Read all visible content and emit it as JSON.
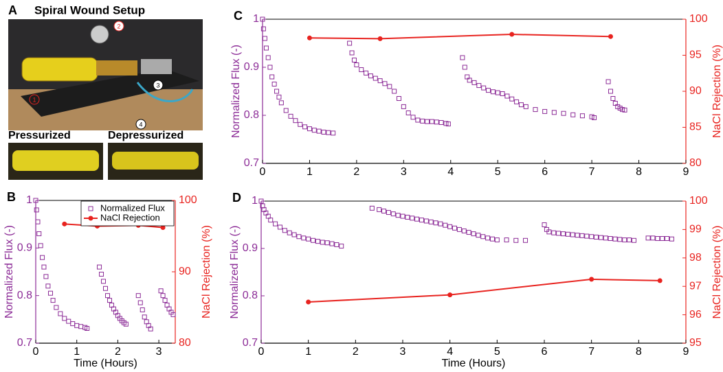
{
  "panel_a": {
    "label": "A",
    "title": "Spiral Wound Setup",
    "callouts": [
      "1",
      "2",
      "3",
      "4"
    ],
    "left_caption": "Pressurized",
    "right_caption": "Depressurized"
  },
  "chart_data": [
    {
      "type": "scatter",
      "label": "B",
      "xlabel": "Time (Hours)",
      "ylabel": "Normalized Flux (-)",
      "y2label": "NaCl Rejection (%)",
      "xlim": [
        0,
        3.4
      ],
      "xticks": [
        0,
        1,
        2,
        3
      ],
      "ylim": [
        0.7,
        1.0
      ],
      "yticks": [
        0.7,
        0.8,
        0.9,
        1
      ],
      "y2lim": [
        80,
        100
      ],
      "y2ticks": [
        80,
        90,
        100
      ],
      "legend": "upper right",
      "series": [
        {
          "name": "Normalized Flux",
          "color": "#8b2a96",
          "marker": "square-open",
          "line": false,
          "x": [
            0,
            0.02,
            0.05,
            0.08,
            0.12,
            0.16,
            0.2,
            0.25,
            0.3,
            0.36,
            0.42,
            0.5,
            0.6,
            0.7,
            0.8,
            0.9,
            1.0,
            1.1,
            1.2,
            1.25,
            1.55,
            1.6,
            1.65,
            1.7,
            1.75,
            1.8,
            1.85,
            1.9,
            1.95,
            2.0,
            2.05,
            2.1,
            2.15,
            2.2,
            2.5,
            2.55,
            2.6,
            2.65,
            2.7,
            2.75,
            2.8,
            3.05,
            3.1,
            3.15,
            3.2,
            3.25,
            3.3,
            3.35
          ],
          "values": [
            1.0,
            0.98,
            0.955,
            0.93,
            0.905,
            0.88,
            0.86,
            0.84,
            0.82,
            0.805,
            0.79,
            0.775,
            0.762,
            0.752,
            0.746,
            0.741,
            0.737,
            0.735,
            0.733,
            0.731,
            0.86,
            0.845,
            0.83,
            0.815,
            0.8,
            0.79,
            0.78,
            0.772,
            0.765,
            0.758,
            0.752,
            0.747,
            0.743,
            0.74,
            0.8,
            0.785,
            0.77,
            0.755,
            0.745,
            0.737,
            0.73,
            0.81,
            0.8,
            0.79,
            0.78,
            0.772,
            0.765,
            0.76
          ]
        },
        {
          "name": "NaCl Rejection",
          "color": "#e8231f",
          "marker": "circle",
          "line": true,
          "axis": "y2",
          "x": [
            0.7,
            1.5,
            2.5,
            3.1
          ],
          "values": [
            96.7,
            96.4,
            96.5,
            96.2
          ]
        }
      ]
    },
    {
      "type": "scatter",
      "label": "C",
      "ylabel": "Normalized Flux (-)",
      "y2label": "NaCl Rejection (%)",
      "xlim": [
        0,
        9
      ],
      "xticks": [
        0,
        1,
        2,
        3,
        4,
        5,
        6,
        7,
        8,
        9
      ],
      "ylim": [
        0.7,
        1.0
      ],
      "yticks": [
        0.7,
        0.8,
        0.9,
        1
      ],
      "y2lim": [
        80,
        100
      ],
      "y2ticks": [
        80,
        85,
        90,
        95,
        100
      ],
      "series": [
        {
          "color": "#8b2a96",
          "marker": "square-open",
          "line": false,
          "x": [
            0,
            0.02,
            0.05,
            0.08,
            0.12,
            0.16,
            0.2,
            0.25,
            0.3,
            0.35,
            0.4,
            0.5,
            0.6,
            0.7,
            0.8,
            0.9,
            1.0,
            1.1,
            1.2,
            1.3,
            1.4,
            1.5,
            1.85,
            1.9,
            1.95,
            2.0,
            2.1,
            2.2,
            2.3,
            2.4,
            2.5,
            2.6,
            2.7,
            2.8,
            2.9,
            3.0,
            3.1,
            3.2,
            3.3,
            3.4,
            3.5,
            3.6,
            3.7,
            3.8,
            3.9,
            3.95,
            4.25,
            4.3,
            4.35,
            4.4,
            4.5,
            4.6,
            4.7,
            4.8,
            4.9,
            5.0,
            5.1,
            5.2,
            5.3,
            5.4,
            5.5,
            5.6,
            5.8,
            6.0,
            6.2,
            6.4,
            6.6,
            6.8,
            7.0,
            7.05,
            7.35,
            7.4,
            7.45,
            7.5,
            7.55,
            7.6,
            7.65,
            7.7
          ],
          "values": [
            1.0,
            0.98,
            0.96,
            0.94,
            0.92,
            0.9,
            0.88,
            0.865,
            0.85,
            0.838,
            0.826,
            0.81,
            0.798,
            0.789,
            0.781,
            0.776,
            0.772,
            0.769,
            0.767,
            0.765,
            0.764,
            0.763,
            0.95,
            0.93,
            0.915,
            0.905,
            0.895,
            0.888,
            0.882,
            0.877,
            0.872,
            0.866,
            0.86,
            0.85,
            0.835,
            0.818,
            0.805,
            0.796,
            0.79,
            0.788,
            0.787,
            0.787,
            0.786,
            0.785,
            0.783,
            0.782,
            0.92,
            0.9,
            0.88,
            0.873,
            0.868,
            0.862,
            0.857,
            0.852,
            0.849,
            0.847,
            0.845,
            0.84,
            0.834,
            0.828,
            0.822,
            0.818,
            0.812,
            0.808,
            0.806,
            0.804,
            0.801,
            0.799,
            0.797,
            0.795,
            0.87,
            0.85,
            0.835,
            0.825,
            0.818,
            0.815,
            0.812,
            0.811
          ]
        },
        {
          "color": "#e8231f",
          "marker": "circle",
          "line": true,
          "axis": "y2",
          "x": [
            1,
            2.5,
            5.3,
            7.4
          ],
          "values": [
            97.4,
            97.3,
            97.9,
            97.6
          ]
        }
      ]
    },
    {
      "type": "scatter",
      "label": "D",
      "xlabel": "Time (Hours)",
      "ylabel": "Normalized Flux (-)",
      "y2label": "NaCl Rejection (%)",
      "xlim": [
        0,
        9
      ],
      "xticks": [
        0,
        1,
        2,
        3,
        4,
        5,
        6,
        7,
        8,
        9
      ],
      "ylim": [
        0.7,
        1.0
      ],
      "yticks": [
        0.7,
        0.8,
        0.9,
        1
      ],
      "y2lim": [
        95,
        100
      ],
      "y2ticks": [
        95,
        96,
        97,
        98,
        99,
        100
      ],
      "series": [
        {
          "color": "#8b2a96",
          "marker": "square-open",
          "line": false,
          "x": [
            0,
            0.03,
            0.06,
            0.1,
            0.15,
            0.2,
            0.3,
            0.4,
            0.5,
            0.6,
            0.7,
            0.8,
            0.9,
            1.0,
            1.1,
            1.2,
            1.3,
            1.4,
            1.5,
            1.6,
            1.7,
            2.35,
            2.5,
            2.6,
            2.7,
            2.8,
            2.9,
            3.0,
            3.1,
            3.2,
            3.3,
            3.4,
            3.5,
            3.6,
            3.7,
            3.8,
            3.9,
            4.0,
            4.1,
            4.2,
            4.3,
            4.4,
            4.5,
            4.6,
            4.7,
            4.8,
            4.9,
            5.0,
            5.2,
            5.4,
            5.6,
            6.0,
            6.05,
            6.1,
            6.2,
            6.3,
            6.4,
            6.5,
            6.6,
            6.7,
            6.8,
            6.9,
            7.0,
            7.1,
            7.2,
            7.3,
            7.4,
            7.5,
            7.6,
            7.7,
            7.8,
            7.9,
            8.2,
            8.3,
            8.4,
            8.5,
            8.6,
            8.7
          ],
          "values": [
            1.0,
            0.99,
            0.982,
            0.975,
            0.968,
            0.96,
            0.952,
            0.945,
            0.938,
            0.933,
            0.929,
            0.925,
            0.922,
            0.92,
            0.917,
            0.915,
            0.913,
            0.912,
            0.91,
            0.908,
            0.905,
            0.985,
            0.982,
            0.979,
            0.976,
            0.973,
            0.97,
            0.968,
            0.966,
            0.964,
            0.962,
            0.96,
            0.958,
            0.956,
            0.954,
            0.952,
            0.949,
            0.946,
            0.943,
            0.94,
            0.937,
            0.934,
            0.931,
            0.928,
            0.925,
            0.922,
            0.92,
            0.918,
            0.918,
            0.917,
            0.917,
            0.95,
            0.94,
            0.935,
            0.933,
            0.932,
            0.931,
            0.93,
            0.929,
            0.928,
            0.927,
            0.926,
            0.925,
            0.924,
            0.923,
            0.922,
            0.921,
            0.92,
            0.919,
            0.918,
            0.918,
            0.917,
            0.922,
            0.922,
            0.921,
            0.921,
            0.921,
            0.92
          ]
        },
        {
          "color": "#e8231f",
          "marker": "circle",
          "line": true,
          "axis": "y2",
          "x": [
            1,
            4,
            7,
            8.45
          ],
          "values": [
            96.45,
            96.7,
            97.25,
            97.2
          ]
        }
      ]
    }
  ]
}
